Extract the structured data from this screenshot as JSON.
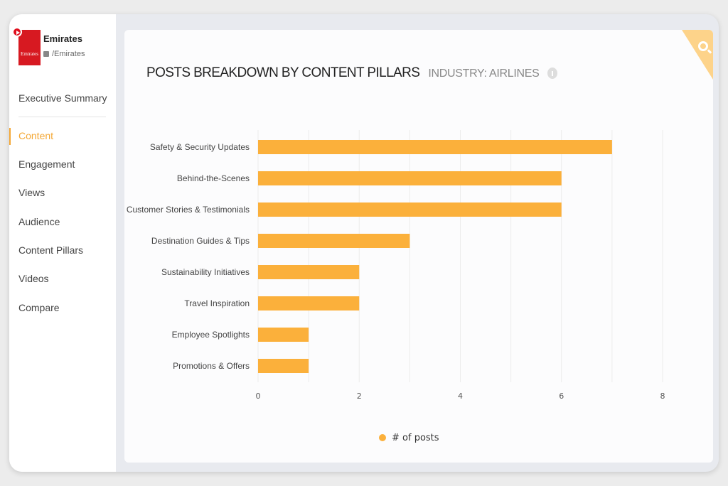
{
  "sidebar": {
    "brand": "Emirates",
    "logo_text": "Emirates",
    "handle": "/Emirates",
    "items": [
      {
        "label": "Executive Summary"
      },
      {
        "label": "Content",
        "active": true
      },
      {
        "label": "Engagement"
      },
      {
        "label": "Views"
      },
      {
        "label": "Audience"
      },
      {
        "label": "Content Pillars"
      },
      {
        "label": "Videos"
      },
      {
        "label": "Compare"
      }
    ]
  },
  "panel": {
    "title": "POSTS BREAKDOWN BY CONTENT PILLARS",
    "subtitle": "INDUSTRY: AIRLINES",
    "info_icon": "info-icon",
    "corner_icon": "search-icon"
  },
  "colors": {
    "accent": "#f4a836",
    "bar": "#fbb03b"
  },
  "chart_data": {
    "type": "bar",
    "orientation": "horizontal",
    "categories": [
      "Safety & Security Updates",
      "Behind-the-Scenes",
      "Customer Stories & Testimonials",
      "Destination Guides & Tips",
      "Sustainability Initiatives",
      "Travel Inspiration",
      "Employee Spotlights",
      "Promotions & Offers"
    ],
    "series": [
      {
        "name": "# of posts",
        "values": [
          7,
          6,
          6,
          3,
          2,
          2,
          1,
          1
        ]
      }
    ],
    "xlim": [
      0,
      8
    ],
    "xticks": [
      "0",
      "2",
      "4",
      "6",
      "8"
    ],
    "grid": true,
    "legend": "bottom"
  }
}
